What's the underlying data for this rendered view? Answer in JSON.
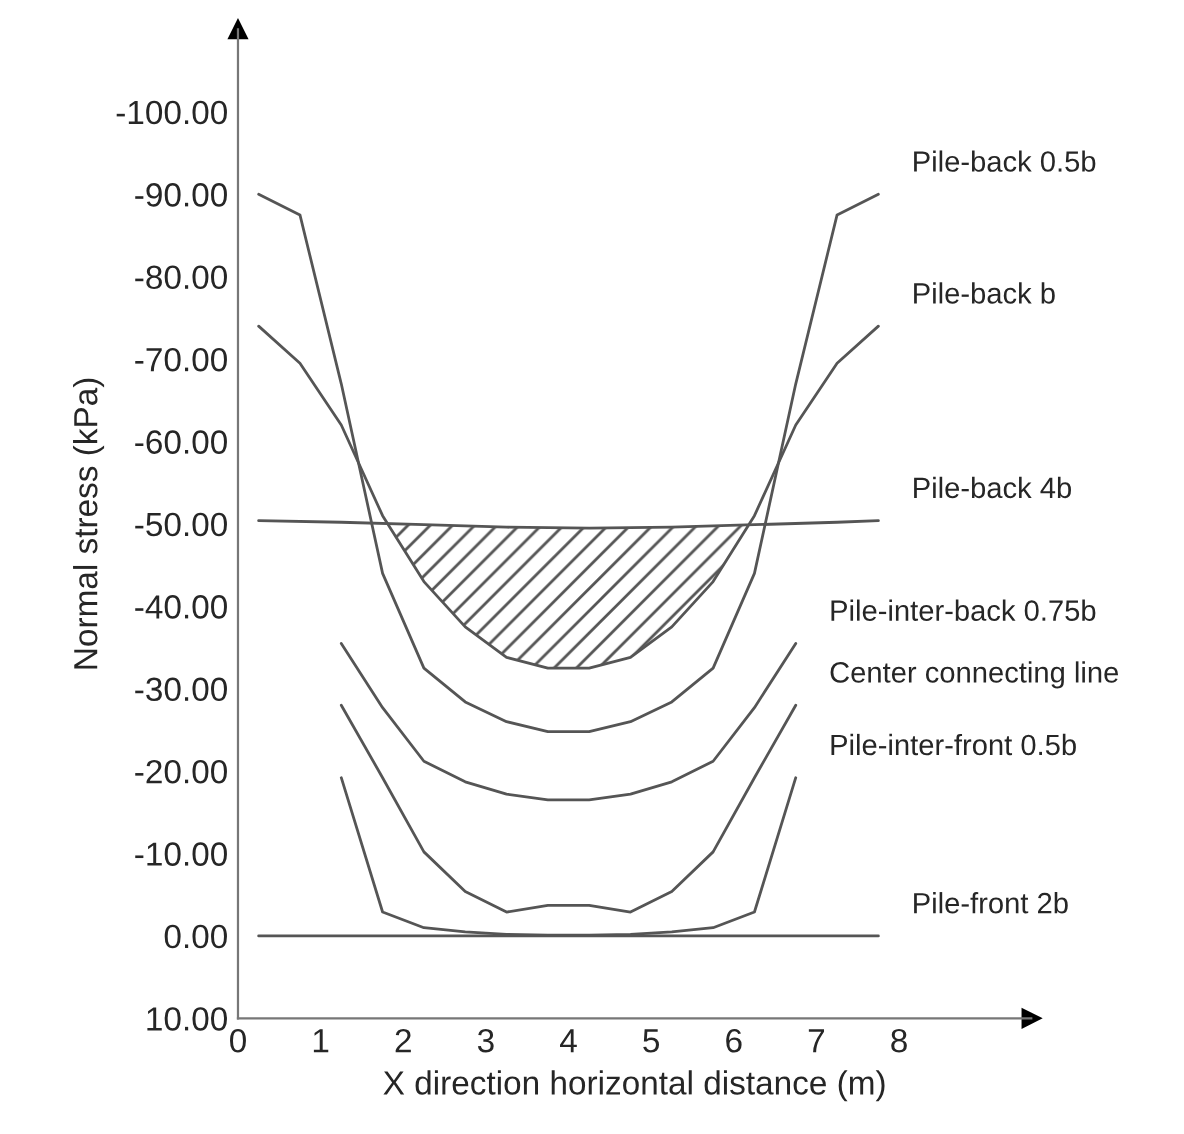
{
  "chart_data": {
    "type": "line",
    "xlabel": "X direction horizontal distance (m)",
    "ylabel": "Normal stress (kPa)",
    "xlim": [
      0,
      9.6
    ],
    "xticks": [
      0,
      1,
      2,
      3,
      4,
      5,
      6,
      7,
      8
    ],
    "ylim": [
      10,
      -110
    ],
    "yticks": [
      {
        "value": 10,
        "label": "10.00"
      },
      {
        "value": 0,
        "label": "0.00"
      },
      {
        "value": -10,
        "label": "-10.00"
      },
      {
        "value": -20,
        "label": "-20.00"
      },
      {
        "value": -30,
        "label": "-30.00"
      },
      {
        "value": -40,
        "label": "-40.00"
      },
      {
        "value": -50,
        "label": "-50.00"
      },
      {
        "value": -60,
        "label": "-60.00"
      },
      {
        "value": -70,
        "label": "-70.00"
      },
      {
        "value": -80,
        "label": "-80.00"
      },
      {
        "value": -90,
        "label": "-90.00"
      },
      {
        "value": -100,
        "label": "-100.00"
      }
    ],
    "grid": false,
    "legend": false,
    "marker": "none",
    "line_style": "solid",
    "series": [
      {
        "name": "Pile-back 0.5b",
        "color": "#555555",
        "x": [
          0.25,
          0.75,
          1.25,
          1.75,
          2.25,
          2.75,
          3.25,
          3.75,
          4.25,
          4.75,
          5.25,
          5.75,
          6.25,
          6.75,
          7.25,
          7.75
        ],
        "values": [
          -90,
          -87.5,
          -67,
          -44,
          -32.5,
          -28.4,
          -26,
          -24.8,
          -24.8,
          -26,
          -28.4,
          -32.5,
          -44,
          -67,
          -87.5,
          -90
        ]
      },
      {
        "name": "Pile-back b",
        "color": "#555555",
        "x": [
          0.25,
          0.75,
          1.25,
          1.75,
          2.25,
          2.75,
          3.25,
          3.75,
          4.25,
          4.75,
          5.25,
          5.75,
          6.25,
          6.75,
          7.25,
          7.75
        ],
        "values": [
          -74,
          -69.5,
          -62,
          -51,
          -43,
          -37.5,
          -33.8,
          -32.5,
          -32.5,
          -33.8,
          -37.5,
          -43,
          -51,
          -62,
          -69.5,
          -74
        ]
      },
      {
        "name": "Pile-back 4b",
        "color": "#555555",
        "x": [
          0.25,
          1.25,
          2.25,
          3.25,
          4.25,
          5.25,
          6.25,
          7.25,
          7.75
        ],
        "values": [
          -50.4,
          -50.2,
          -49.9,
          -49.6,
          -49.5,
          -49.6,
          -49.9,
          -50.2,
          -50.4
        ]
      },
      {
        "name": "Pile-inter-back 0.75b",
        "color": "#555555",
        "x": [
          1.25,
          1.75,
          2.25,
          2.75,
          3.25,
          3.75,
          4.25,
          4.75,
          5.25,
          5.75,
          6.25,
          6.75
        ],
        "values": [
          -35.5,
          -27.7,
          -21.2,
          -18.7,
          -17.2,
          -16.5,
          -16.5,
          -17.2,
          -18.7,
          -21.2,
          -27.7,
          -35.5
        ]
      },
      {
        "name": "Center connecting line",
        "color": "#555555",
        "x": [
          1.25,
          1.75,
          2.25,
          2.75,
          3.25,
          3.75,
          4.25,
          4.75,
          5.25,
          5.75,
          6.25,
          6.75
        ],
        "values": [
          -28,
          -19.2,
          -10.2,
          -5.4,
          -2.9,
          -3.7,
          -3.7,
          -2.9,
          -5.4,
          -10.2,
          -19.2,
          -28
        ]
      },
      {
        "name": "Pile-inter-front 0.5b",
        "color": "#555555",
        "x": [
          1.25,
          1.75,
          2.25,
          2.75,
          3.25,
          3.75,
          4.25,
          4.75,
          5.25,
          5.75,
          6.25,
          6.75
        ],
        "values": [
          -19.2,
          -2.9,
          -1,
          -0.5,
          -0.2,
          -0.1,
          -0.1,
          -0.2,
          -0.5,
          -1,
          -2.9,
          -19.2
        ]
      },
      {
        "name": "Pile-front 2b",
        "color": "#555555",
        "x": [
          0.25,
          7.75
        ],
        "values": [
          0,
          0
        ]
      }
    ]
  }
}
